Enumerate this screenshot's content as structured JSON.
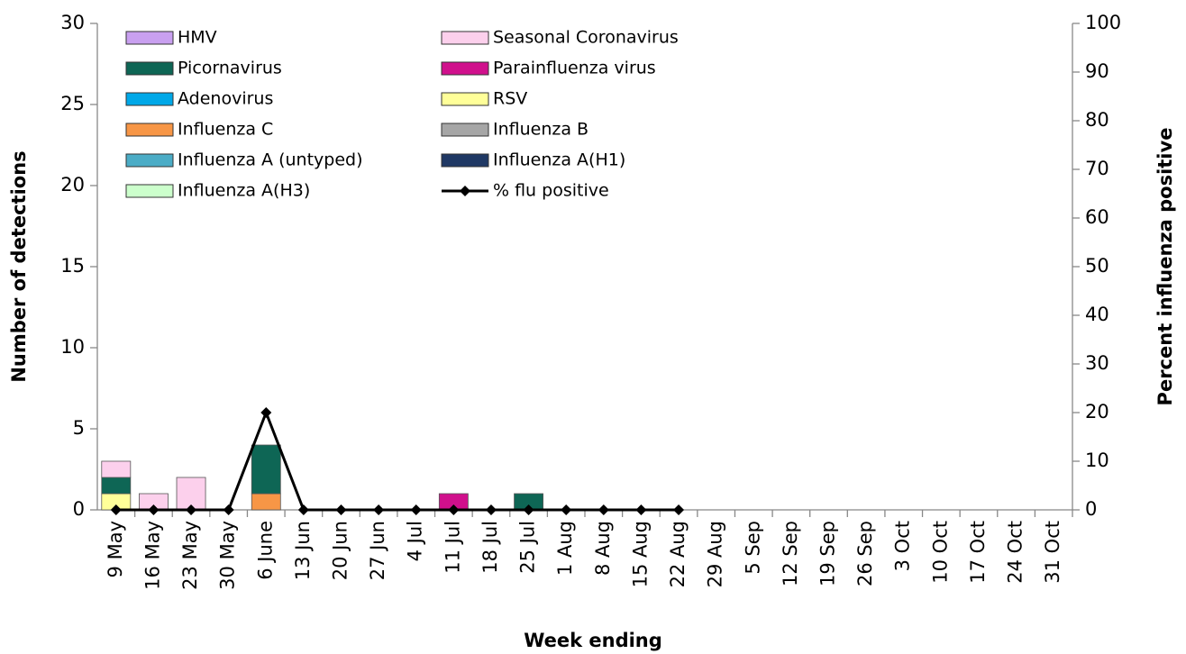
{
  "chart_data": {
    "type": "bar",
    "stacked": true,
    "x_label": "Week ending",
    "y_label": "Number of detections",
    "y2_label": "Percent influenza positive",
    "categories": [
      "9 May",
      "16 May",
      "23 May",
      "30 May",
      "6 June",
      "13 Jun",
      "20 Jun",
      "27 Jun",
      "4 Jul",
      "11 Jul",
      "18 Jul",
      "25 Jul",
      "1 Aug",
      "8 Aug",
      "15 Aug",
      "22 Aug",
      "29 Aug",
      "5 Sep",
      "12 Sep",
      "19 Sep",
      "26 Sep",
      "3 Oct",
      "10 Oct",
      "17 Oct",
      "24 Oct",
      "31 Oct"
    ],
    "ylim": [
      0,
      30
    ],
    "yticks": [
      0,
      5,
      10,
      15,
      20,
      25,
      30
    ],
    "y2lim": [
      0,
      100
    ],
    "y2ticks": [
      0,
      10,
      20,
      30,
      40,
      50,
      60,
      70,
      80,
      90,
      100
    ],
    "series": [
      {
        "name": "HMV",
        "color": "#c9a0f0",
        "values": [
          0,
          0,
          0,
          0,
          0,
          0,
          0,
          0,
          0,
          0,
          0,
          0,
          0,
          0,
          0,
          0,
          null,
          null,
          null,
          null,
          null,
          null,
          null,
          null,
          null,
          null
        ]
      },
      {
        "name": "Seasonal Coronavirus",
        "color": "#fcd0ec",
        "values": [
          1,
          1,
          2,
          0,
          0,
          0,
          0,
          0,
          0,
          0,
          0,
          0,
          0,
          0,
          0,
          0,
          null,
          null,
          null,
          null,
          null,
          null,
          null,
          null,
          null,
          null
        ]
      },
      {
        "name": "Picornavirus",
        "color": "#0e6655",
        "values": [
          1,
          0,
          0,
          0,
          3,
          0,
          0,
          0,
          0,
          0,
          0,
          1,
          0,
          0,
          0,
          0,
          null,
          null,
          null,
          null,
          null,
          null,
          null,
          null,
          null,
          null
        ]
      },
      {
        "name": "Parainfluenza virus",
        "color": "#d0108c",
        "values": [
          0,
          0,
          0,
          0,
          0,
          0,
          0,
          0,
          0,
          1,
          0,
          0,
          0,
          0,
          0,
          0,
          null,
          null,
          null,
          null,
          null,
          null,
          null,
          null,
          null,
          null
        ]
      },
      {
        "name": "Adenovirus",
        "color": "#00a8e8",
        "values": [
          0,
          0,
          0,
          0,
          0,
          0,
          0,
          0,
          0,
          0,
          0,
          0,
          0,
          0,
          0,
          0,
          null,
          null,
          null,
          null,
          null,
          null,
          null,
          null,
          null,
          null
        ]
      },
      {
        "name": "RSV",
        "color": "#ffff99",
        "values": [
          1,
          0,
          0,
          0,
          0,
          0,
          0,
          0,
          0,
          0,
          0,
          0,
          0,
          0,
          0,
          0,
          null,
          null,
          null,
          null,
          null,
          null,
          null,
          null,
          null,
          null
        ]
      },
      {
        "name": "Influenza C",
        "color": "#f79646",
        "values": [
          0,
          0,
          0,
          0,
          1,
          0,
          0,
          0,
          0,
          0,
          0,
          0,
          0,
          0,
          0,
          0,
          null,
          null,
          null,
          null,
          null,
          null,
          null,
          null,
          null,
          null
        ]
      },
      {
        "name": "Influenza B",
        "color": "#a6a6a6",
        "values": [
          0,
          0,
          0,
          0,
          0,
          0,
          0,
          0,
          0,
          0,
          0,
          0,
          0,
          0,
          0,
          0,
          null,
          null,
          null,
          null,
          null,
          null,
          null,
          null,
          null,
          null
        ]
      },
      {
        "name": "Influenza A (untyped)",
        "color": "#4bacc6",
        "values": [
          0,
          0,
          0,
          0,
          0,
          0,
          0,
          0,
          0,
          0,
          0,
          0,
          0,
          0,
          0,
          0,
          null,
          null,
          null,
          null,
          null,
          null,
          null,
          null,
          null,
          null
        ]
      },
      {
        "name": "Influenza A(H1)",
        "color": "#1f3864",
        "values": [
          0,
          0,
          0,
          0,
          0,
          0,
          0,
          0,
          0,
          0,
          0,
          0,
          0,
          0,
          0,
          0,
          null,
          null,
          null,
          null,
          null,
          null,
          null,
          null,
          null,
          null
        ]
      },
      {
        "name": "Influenza A(H3)",
        "color": "#ccffcc",
        "values": [
          0,
          0,
          0,
          0,
          0,
          0,
          0,
          0,
          0,
          0,
          0,
          0,
          0,
          0,
          0,
          0,
          null,
          null,
          null,
          null,
          null,
          null,
          null,
          null,
          null,
          null
        ]
      },
      {
        "name": "% flu positive",
        "type": "line",
        "axis": "y2",
        "color": "#000000",
        "values": [
          0,
          0,
          0,
          0,
          20,
          0,
          0,
          0,
          0,
          0,
          0,
          0,
          0,
          0,
          0,
          0,
          null,
          null,
          null,
          null,
          null,
          null,
          null,
          null,
          null,
          null
        ]
      }
    ]
  }
}
